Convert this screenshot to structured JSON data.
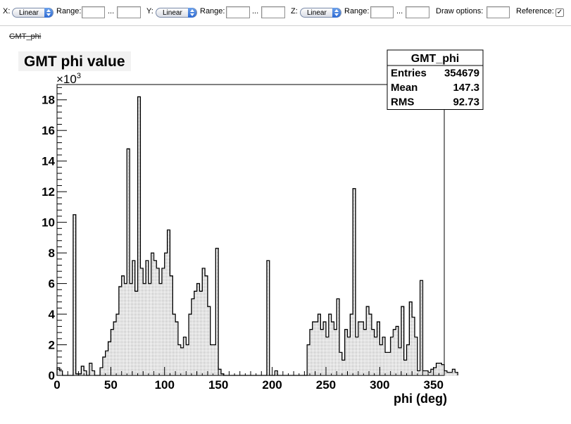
{
  "toolbar": {
    "x_label": "X:",
    "y_label": "Y:",
    "z_label": "Z:",
    "x_scale": "Linear",
    "y_scale": "Linear",
    "z_scale": "Linear",
    "range_label": "Range:",
    "range_sep": "...",
    "draw_options_label": "Draw options:",
    "reference_label": "Reference:",
    "reference_checked": "✓"
  },
  "histogram_link": "GMT_phi",
  "chart_data": {
    "type": "bar",
    "title": "GMT phi value",
    "xlabel": "phi (deg)",
    "ylabel": "",
    "y_exponent_label": "×10",
    "y_exponent_power": "3",
    "xlim": [
      0,
      360
    ],
    "ylim": [
      0,
      19000
    ],
    "x_ticks": [
      0,
      50,
      100,
      150,
      200,
      250,
      300,
      350
    ],
    "y_ticks": [
      0,
      2000,
      4000,
      6000,
      8000,
      10000,
      12000,
      14000,
      16000,
      18000
    ],
    "y_tick_labels": [
      "0",
      "2",
      "4",
      "6",
      "8",
      "10",
      "12",
      "14",
      "16",
      "18"
    ],
    "bin_width": 2.5,
    "stats": {
      "name": "GMT_phi",
      "rows": [
        {
          "label": "Entries",
          "value": "354679"
        },
        {
          "label": "Mean",
          "value": "147.3"
        },
        {
          "label": "RMS",
          "value": "92.73"
        }
      ]
    },
    "values": [
      500,
      300,
      0,
      0,
      0,
      0,
      10500,
      100,
      100,
      600,
      300,
      0,
      800,
      300,
      0,
      0,
      500,
      1200,
      1600,
      2200,
      3000,
      3500,
      4000,
      5800,
      6500,
      6000,
      14800,
      6000,
      7500,
      5500,
      18200,
      7000,
      6000,
      7500,
      6000,
      8000,
      7500,
      7000,
      6000,
      7000,
      8000,
      9500,
      6500,
      4000,
      3500,
      2000,
      1800,
      2500,
      2000,
      4000,
      5000,
      5500,
      6000,
      5500,
      7000,
      6500,
      4500,
      2000,
      2000,
      8300,
      400,
      100,
      0,
      0,
      0,
      0,
      0,
      0,
      0,
      0,
      0,
      0,
      0,
      0,
      0,
      0,
      0,
      0,
      7500,
      0,
      0,
      300,
      0,
      0,
      0,
      0,
      0,
      0,
      0,
      0,
      0,
      0,
      0,
      2000,
      3000,
      3500,
      3500,
      4000,
      3000,
      3500,
      2500,
      4000,
      3500,
      3000,
      5000,
      1500,
      1000,
      3000,
      2500,
      4000,
      12200,
      2500,
      3500,
      3500,
      3000,
      4500,
      4000,
      3000,
      2500,
      3500,
      2000,
      2500,
      1500,
      1500,
      2500,
      3000,
      3200,
      1800,
      4500,
      1000,
      2000,
      4800,
      3800,
      2500,
      300,
      6200,
      300,
      300,
      200,
      400,
      500,
      800,
      800,
      700,
      300,
      200,
      200,
      400,
      200
    ]
  }
}
